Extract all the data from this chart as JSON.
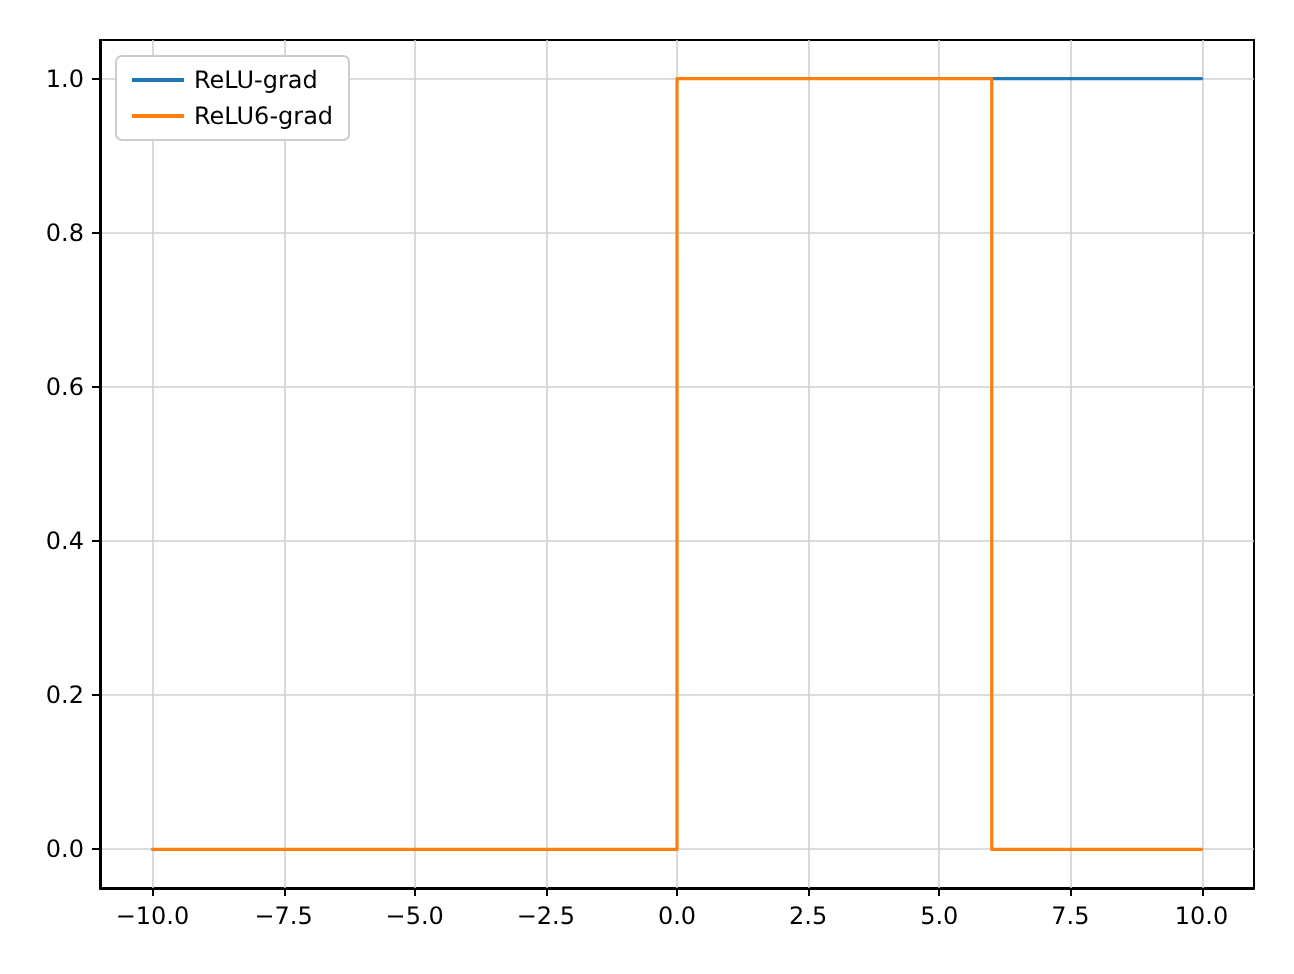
{
  "chart_data": {
    "type": "line",
    "series": [
      {
        "name": "ReLU-grad",
        "color": "#1f77b4",
        "x": [
          6,
          10
        ],
        "values": [
          1,
          1
        ]
      },
      {
        "name": "ReLU6-grad",
        "color": "#ff7f0e",
        "x": [
          -10,
          0,
          0,
          6,
          6,
          10
        ],
        "values": [
          0,
          0,
          1,
          1,
          0,
          0
        ]
      }
    ],
    "xlim": [
      -11,
      11
    ],
    "xticks": [
      {
        "value": -10,
        "label": "−10.0"
      },
      {
        "value": -7.5,
        "label": "−7.5"
      },
      {
        "value": -5,
        "label": "−5.0"
      },
      {
        "value": -2.5,
        "label": "−2.5"
      },
      {
        "value": 0,
        "label": "0.0"
      },
      {
        "value": 2.5,
        "label": "2.5"
      },
      {
        "value": 5,
        "label": "5.0"
      },
      {
        "value": 7.5,
        "label": "7.5"
      },
      {
        "value": 10,
        "label": "10.0"
      }
    ],
    "ylim": [
      -0.05,
      1.05
    ],
    "yticks": [
      {
        "value": 0,
        "label": "0.0"
      },
      {
        "value": 0.2,
        "label": "0.2"
      },
      {
        "value": 0.4,
        "label": "0.4"
      },
      {
        "value": 0.6,
        "label": "0.6"
      },
      {
        "value": 0.8,
        "label": "0.8"
      },
      {
        "value": 1,
        "label": "1.0"
      }
    ],
    "grid": true,
    "legend": "top left",
    "marker": "none",
    "line_style": "solid"
  }
}
